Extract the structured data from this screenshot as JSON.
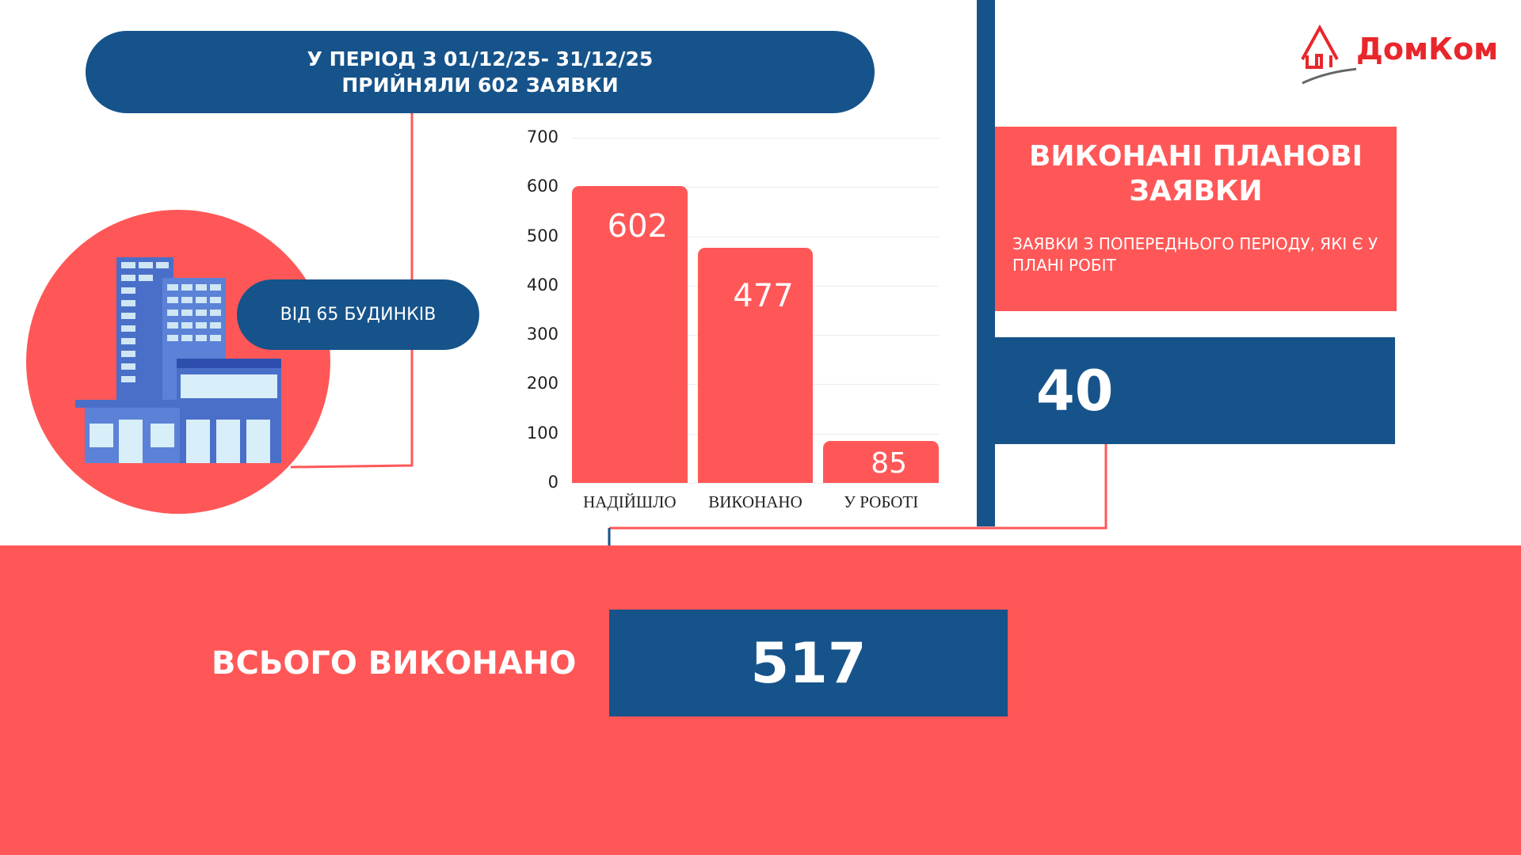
{
  "header": {
    "line1": "У ПЕРІОД З 01/12/25- 31/12/25",
    "line2": "ПРИЙНЯЛИ 602 ЗАЯВКИ"
  },
  "buildings_label": "ВІД 65 БУДИНКІВ",
  "logo": {
    "text": "ДомКом"
  },
  "plan": {
    "title": "ВИКОНАНІ ПЛАНОВІ ЗАЯВКИ",
    "subtitle": "ЗАЯВКИ З ПОПЕРЕДНЬОГО ПЕРІОДУ, ЯКІ Є У ПЛАНІ РОБІТ",
    "value": "40"
  },
  "total": {
    "label": "ВСЬОГО ВИКОНАНО",
    "value": "517"
  },
  "colors": {
    "red": "#ff5757",
    "blue": "#16538a",
    "logo_red": "#e8262b"
  },
  "chart_data": {
    "type": "bar",
    "title": "",
    "categories": [
      "НАДІЙШЛО",
      "ВИКОНАНО",
      "У РОБОТІ"
    ],
    "values": [
      602,
      477,
      85
    ],
    "ylim": [
      0,
      700
    ],
    "yticks": [
      "0",
      "100",
      "200",
      "300",
      "400",
      "500",
      "600",
      "700"
    ],
    "grid": true,
    "xlabel": "",
    "ylabel": ""
  }
}
